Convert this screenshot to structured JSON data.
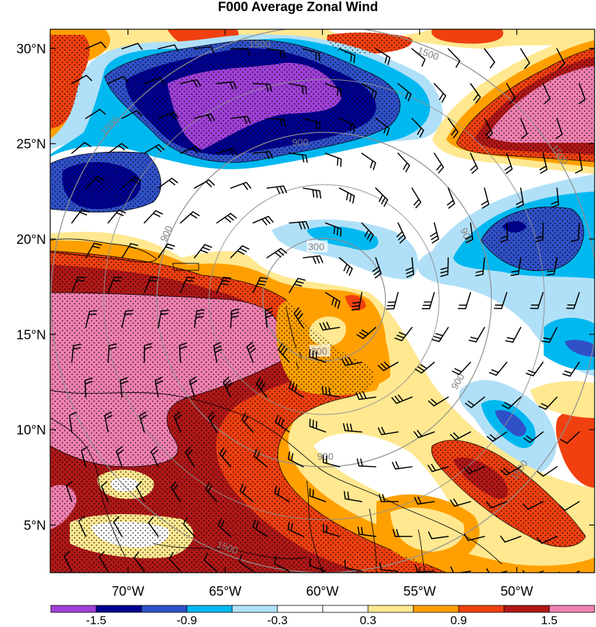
{
  "title": "F000 Average Zonal Wind",
  "map": {
    "lat_labels": [
      "30°N",
      "25°N",
      "20°N",
      "15°N",
      "10°N",
      "5°N"
    ],
    "lat_values": [
      30,
      25,
      20,
      15,
      10,
      5
    ],
    "lon_labels": [
      "70°W",
      "65°W",
      "60°W",
      "55°W",
      "50°W"
    ],
    "lon_values": [
      -70,
      -65,
      -60,
      -55,
      -50
    ],
    "lat_range": [
      2.5,
      31
    ],
    "lon_range": [
      -74,
      -46
    ],
    "range_rings": {
      "center": {
        "lon": -59.5,
        "lat": 16.5
      },
      "radii_km": [
        300,
        900,
        1500
      ],
      "labels": [
        "300",
        "300",
        "900",
        "900",
        "900",
        "900",
        "900",
        "1500",
        "1500",
        "1500",
        "1500",
        "1500",
        "1500"
      ],
      "color": "#909090"
    },
    "stippling": "dots",
    "coastlines": true,
    "wind_barbs": true
  },
  "colorbar": {
    "colors": [
      "#a040d8",
      "#000090",
      "#3050c8",
      "#00b8f0",
      "#b0e0f8",
      "#ffffff",
      "#ffffff",
      "#ffe890",
      "#ffa000",
      "#f04010",
      "#b01818",
      "#f080b0"
    ],
    "tick_labels": [
      "-1.5",
      "-0.9",
      "-0.3",
      "0.3",
      "0.9",
      "1.5"
    ],
    "tick_values": [
      -1.5,
      -0.9,
      -0.3,
      0.3,
      0.9,
      1.5
    ],
    "levels": [
      -1.8,
      -1.5,
      -1.2,
      -0.9,
      -0.6,
      -0.3,
      0,
      0.3,
      0.6,
      0.9,
      1.2,
      1.5,
      1.8
    ]
  }
}
